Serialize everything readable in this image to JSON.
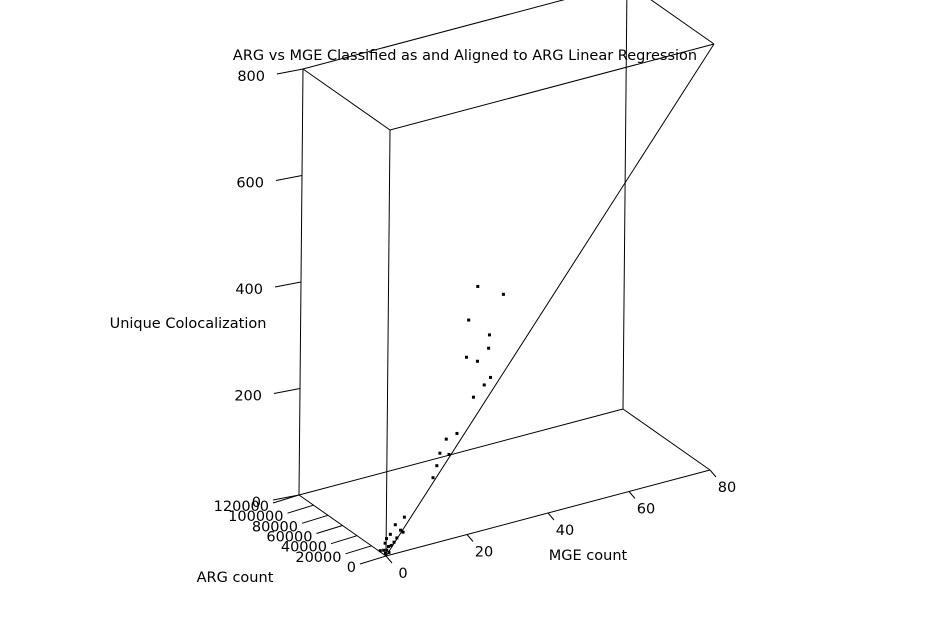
{
  "chart_data": {
    "type": "scatter3d",
    "title": "ARG vs MGE Classified as and Aligned to ARG Linear Regression",
    "axes": {
      "x": {
        "label": "MGE count",
        "range": [
          0,
          80
        ],
        "ticks": [
          "0",
          "20",
          "40",
          "60",
          "80"
        ]
      },
      "y": {
        "label": "ARG count",
        "range": [
          0,
          120000
        ],
        "ticks": [
          "0",
          "20000",
          "40000",
          "60000",
          "80000",
          "100000",
          "120000"
        ]
      },
      "z": {
        "label": "Unique Colocalization",
        "range": [
          0,
          800
        ],
        "ticks": [
          "0",
          "200",
          "400",
          "600",
          "800"
        ]
      }
    },
    "grid": false,
    "regression_line": {
      "from": {
        "x": 0,
        "z": 0
      },
      "to": {
        "x": 80,
        "z": 800
      }
    },
    "points": [
      {
        "x": 0.3,
        "y": 2500,
        "z": 2
      },
      {
        "x": 0.5,
        "y": 6000,
        "z": 4
      },
      {
        "x": 0.8,
        "y": 3500,
        "z": 6
      },
      {
        "x": 1.0,
        "y": 1500,
        "z": 3
      },
      {
        "x": 0.2,
        "y": 9000,
        "z": 1
      },
      {
        "x": 1.5,
        "y": 5000,
        "z": 10
      },
      {
        "x": 2.0,
        "y": 4000,
        "z": 12
      },
      {
        "x": 2.5,
        "y": 3000,
        "z": 18
      },
      {
        "x": 1.2,
        "y": 8000,
        "z": 14
      },
      {
        "x": 3.0,
        "y": 2000,
        "z": 26
      },
      {
        "x": 2.2,
        "y": 6500,
        "z": 30
      },
      {
        "x": 1.8,
        "y": 9500,
        "z": 20
      },
      {
        "x": 4.0,
        "y": 2500,
        "z": 38
      },
      {
        "x": 3.5,
        "y": 7000,
        "z": 45
      },
      {
        "x": 5.0,
        "y": 3000,
        "z": 60
      },
      {
        "x": 4.5,
        "y": 1800,
        "z": 34
      },
      {
        "x": 12.0,
        "y": 3000,
        "z": 120
      },
      {
        "x": 13.0,
        "y": 3500,
        "z": 140
      },
      {
        "x": 14.0,
        "y": 5000,
        "z": 160
      },
      {
        "x": 16.0,
        "y": 7500,
        "z": 180
      },
      {
        "x": 16.0,
        "y": 3500,
        "z": 155
      },
      {
        "x": 18.0,
        "y": 4000,
        "z": 190
      },
      {
        "x": 22.0,
        "y": 4000,
        "z": 250
      },
      {
        "x": 25.0,
        "y": 6000,
        "z": 265
      },
      {
        "x": 26.0,
        "y": 3000,
        "z": 280
      },
      {
        "x": 23.0,
        "y": 4500,
        "z": 315
      },
      {
        "x": 26.0,
        "y": 6000,
        "z": 332
      },
      {
        "x": 26.0,
        "y": 5000,
        "z": 358
      },
      {
        "x": 20.0,
        "y": 3000,
        "z": 330
      },
      {
        "x": 21.0,
        "y": 6000,
        "z": 395
      },
      {
        "x": 23.0,
        "y": 5000,
        "z": 455
      },
      {
        "x": 29.0,
        "y": 3000,
        "z": 430
      }
    ]
  }
}
